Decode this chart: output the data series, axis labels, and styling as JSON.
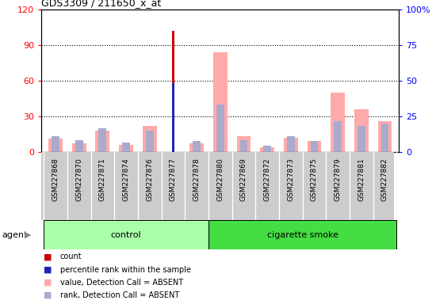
{
  "title": "GDS3309 / 211650_x_at",
  "samples": [
    "GSM227868",
    "GSM227870",
    "GSM227871",
    "GSM227874",
    "GSM227876",
    "GSM227877",
    "GSM227878",
    "GSM227880",
    "GSM227869",
    "GSM227872",
    "GSM227873",
    "GSM227875",
    "GSM227879",
    "GSM227881",
    "GSM227882"
  ],
  "control_count": 7,
  "smoke_count": 8,
  "control_label": "control",
  "smoke_label": "cigarette smoke",
  "agent_label": "agent",
  "count_values": [
    0,
    0,
    0,
    0,
    0,
    102,
    0,
    0,
    0,
    0,
    0,
    0,
    0,
    0,
    0
  ],
  "rank_values": [
    0,
    0,
    0,
    0,
    0,
    48,
    0,
    0,
    0,
    0,
    0,
    0,
    0,
    0,
    0
  ],
  "absent_value": [
    11,
    7,
    18,
    6,
    22,
    0,
    7,
    84,
    13,
    4,
    12,
    9,
    50,
    36,
    26
  ],
  "absent_rank": [
    13,
    10,
    20,
    8,
    18,
    0,
    9,
    40,
    10,
    5,
    13,
    9,
    26,
    22,
    24
  ],
  "left_ylim": [
    0,
    120
  ],
  "right_ylim": [
    0,
    100
  ],
  "left_yticks": [
    0,
    30,
    60,
    90,
    120
  ],
  "right_yticks": [
    0,
    25,
    50,
    75,
    100
  ],
  "left_yticklabels": [
    "0",
    "30",
    "60",
    "90",
    "120"
  ],
  "right_yticklabels": [
    "0",
    "25",
    "50",
    "75",
    "100%"
  ],
  "color_count": "#cc0000",
  "color_rank": "#2222bb",
  "color_absent_value": "#ffaaaa",
  "color_absent_rank": "#aaaacc",
  "color_control_bg": "#aaffaa",
  "color_smoke_bg": "#44dd44",
  "color_label_bg": "#cccccc",
  "bar_width": 0.6
}
